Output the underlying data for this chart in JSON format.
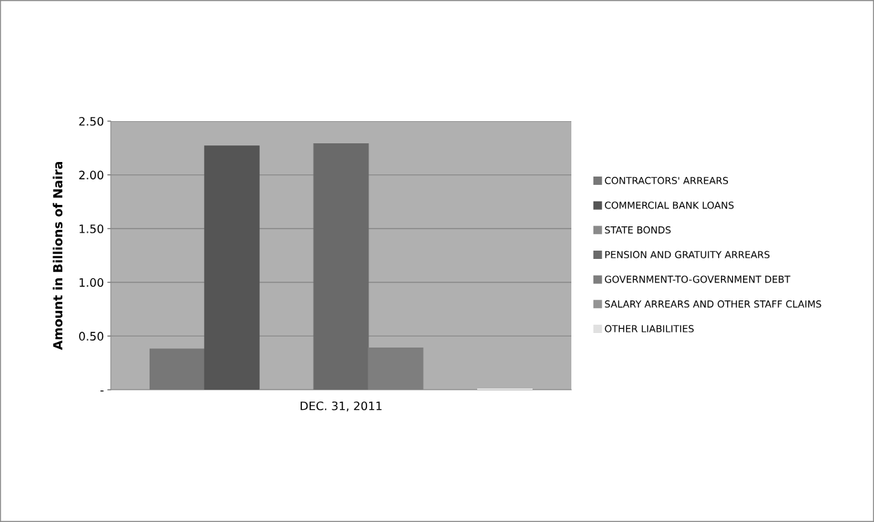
{
  "chart_data": {
    "type": "bar",
    "ylabel": "Amount in Billions of Naira",
    "categories": [
      "DEC. 31, 2011"
    ],
    "series": [
      {
        "name": "CONTRACTORS' ARREARS",
        "color": "#777777",
        "values": [
          0.38
        ]
      },
      {
        "name": "COMMERCIAL BANK LOANS",
        "color": "#555555",
        "values": [
          2.27
        ]
      },
      {
        "name": "STATE BONDS",
        "color": "#8a8a8a",
        "values": [
          0
        ]
      },
      {
        "name": "PENSION AND GRATUITY ARREARS",
        "color": "#6a6a6a",
        "values": [
          2.29
        ]
      },
      {
        "name": "GOVERNMENT-TO-GOVERNMENT DEBT",
        "color": "#7e7e7e",
        "values": [
          0.39
        ]
      },
      {
        "name": "SALARY ARREARS AND OTHER STAFF CLAIMS",
        "color": "#939393",
        "values": [
          0
        ]
      },
      {
        "name": "OTHER LIABILITIES",
        "color": "#e0e0e0",
        "values": [
          0.01
        ]
      }
    ],
    "ylim": [
      0,
      2.5
    ],
    "yticks": [
      {
        "value": 0,
        "label": "-"
      },
      {
        "value": 0.5,
        "label": "0.50"
      },
      {
        "value": 1,
        "label": "1.00"
      },
      {
        "value": 1.5,
        "label": "1.50"
      },
      {
        "value": 2,
        "label": "2.00"
      },
      {
        "value": 2.5,
        "label": "2.50"
      }
    ],
    "grid": "y",
    "legend": "right"
  }
}
